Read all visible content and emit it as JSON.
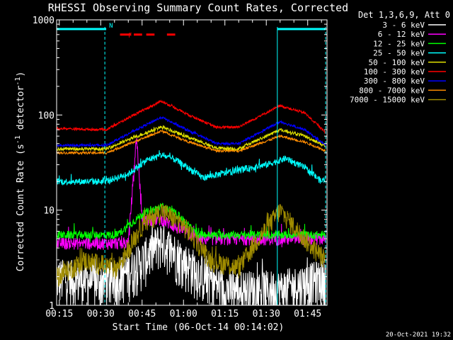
{
  "chart_data": {
    "type": "line",
    "title": "RHESSI Observing Summary Count Rates, Corrected",
    "xlabel": "Start Time (06-Oct-14 00:14:02)",
    "ylabel_main": "Corrected Count Rate (s",
    "ylabel_sup1": "-1",
    "ylabel_mid": " detector",
    "ylabel_sup2": "-1",
    "ylabel_end": ")",
    "yscale": "log",
    "ylim": [
      1,
      1000
    ],
    "xlim_minutes": [
      14.03,
      112
    ],
    "x_ticks": [
      "00:15",
      "00:30",
      "00:45",
      "01:00",
      "01:15",
      "01:30",
      "01:45"
    ],
    "x_tick_minutes": [
      15,
      30,
      45,
      60,
      75,
      90,
      105
    ],
    "y_ticks": [
      "1",
      "10",
      "100",
      "1000"
    ],
    "y_tick_values": [
      1,
      10,
      100,
      1000
    ],
    "legend_title": "Det 1,3,6,9, Att 0",
    "legend_placement": "right",
    "series": [
      {
        "name": "3 - 6 keV",
        "color": "#ffffff",
        "base": 1.8,
        "noise": 0.55,
        "peak": 0.9,
        "x": [
          14.03,
          33,
          42,
          45,
          52,
          60,
          75,
          95,
          112
        ],
        "y": [
          2,
          1.8,
          2.5,
          3,
          5,
          3,
          1.5,
          1.5,
          2
        ]
      },
      {
        "name": "6 - 12 keV",
        "color": "#ff00ff",
        "base": 5,
        "noise": 0.15,
        "peak": 0.5,
        "x": [
          14.03,
          32,
          40,
          43,
          45,
          52,
          65,
          90,
          112
        ],
        "y": [
          4.5,
          4.5,
          4.5,
          60,
          8,
          8,
          5,
          5,
          5
        ]
      },
      {
        "name": "12 - 25 keV",
        "color": "#00ff00",
        "base": 5.5,
        "noise": 0.1,
        "peak": 0.3,
        "x": [
          14.03,
          36,
          45,
          52,
          58,
          65,
          80,
          112
        ],
        "y": [
          5.5,
          5.5,
          9,
          11,
          9,
          5.5,
          5.5,
          5.5
        ]
      },
      {
        "name": "25 - 50 keV",
        "color": "#00ffff",
        "base": 1,
        "noise": 0.08,
        "peak": 0.3,
        "x": [
          14.03,
          31.5,
          40,
          47,
          52,
          57,
          67,
          90,
          97,
          104,
          110,
          111.5
        ],
        "y": [
          20,
          20,
          24,
          34,
          38,
          34,
          22,
          30,
          35,
          28,
          20,
          22
        ]
      },
      {
        "name": "50 - 100 keV",
        "color": "#e0e000",
        "base": 1,
        "noise": 0.04,
        "peak": 0.05,
        "x": [
          14.03,
          32,
          42,
          52,
          62,
          72,
          80,
          95,
          104,
          111.5
        ],
        "y": [
          44,
          44,
          58,
          75,
          58,
          45,
          44,
          70,
          60,
          47
        ]
      },
      {
        "name": "100 - 300 keV",
        "color": "#ff0000",
        "base": 1,
        "noise": 0.03,
        "peak": 0.05,
        "x": [
          14.03,
          32,
          42,
          52,
          62,
          72,
          80,
          95,
          104,
          111.5
        ],
        "y": [
          72,
          70,
          100,
          140,
          100,
          74,
          75,
          125,
          105,
          65
        ]
      },
      {
        "name": "300 - 800 keV",
        "color": "#0000ff",
        "base": 1,
        "noise": 0.03,
        "peak": 0.05,
        "x": [
          14.03,
          32,
          42,
          52,
          62,
          72,
          80,
          95,
          104,
          111.5
        ],
        "y": [
          48,
          48,
          68,
          95,
          68,
          50,
          50,
          85,
          70,
          48
        ]
      },
      {
        "name": "800 - 7000 keV",
        "color": "#ff8c00",
        "base": 1,
        "noise": 0.03,
        "peak": 0.03,
        "x": [
          14.03,
          32,
          42,
          52,
          62,
          72,
          80,
          95,
          104,
          111.5
        ],
        "y": [
          40,
          40,
          52,
          68,
          52,
          42,
          42,
          60,
          52,
          42
        ]
      },
      {
        "name": "7000 - 15000 keV",
        "color": "#a08c00",
        "base": 1,
        "noise": 0.25,
        "peak": 0.3,
        "x": [
          14.03,
          24,
          36,
          45,
          52,
          60,
          70,
          80,
          87,
          95,
          104,
          111.5
        ],
        "y": [
          2,
          3,
          2.5,
          7,
          10,
          7,
          3,
          2.5,
          5,
          10,
          5,
          3
        ]
      }
    ],
    "flags": [
      {
        "name": "N",
        "color": "#00ffff",
        "segments": [
          [
            14.03,
            32
          ],
          [
            94,
            111.5
          ]
        ],
        "level": 800
      },
      {
        "name": "F",
        "color": "#ff0000",
        "segments": [
          [
            37,
            41
          ],
          [
            42,
            45
          ],
          [
            46.5,
            49.5
          ],
          [
            54,
            57
          ]
        ],
        "level": 700
      }
    ],
    "vertical_markers": {
      "color": "#00ffff",
      "dashed_x": [
        31.5,
        111.5
      ],
      "solid_x": [
        94
      ]
    }
  },
  "footer_date": "20-Oct-2021 19:32"
}
